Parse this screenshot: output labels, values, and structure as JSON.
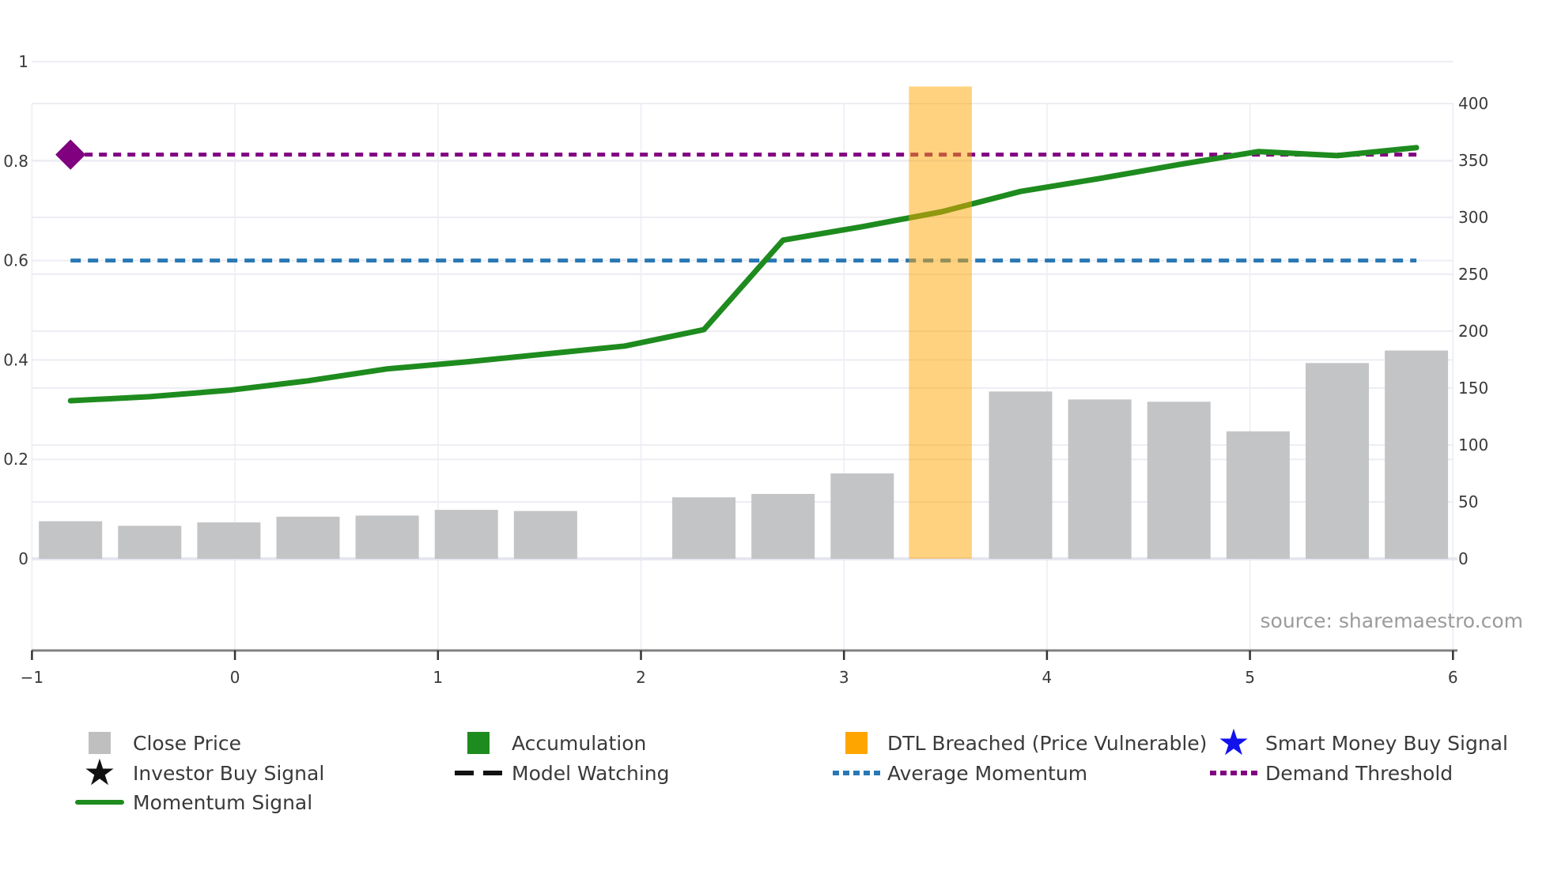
{
  "source_note": "source: sharemaestro.com",
  "colors": {
    "bar_gray": "#c3c4c6",
    "legend_gray": "#bfbfbf",
    "green": "#1e8b1e",
    "orange": "#ffa500",
    "orange_band_fill_alpha": 0.5,
    "blue": "#2878b4",
    "purple": "#800080",
    "blue_star": "#1212ee",
    "black": "#111111",
    "axis_spine": "#808080",
    "tick_text": "#3a3a3a",
    "grid_light": "#ededf3",
    "grid_vertical": "#eff1f7",
    "baseline_band": "#e6e7f0",
    "source_text": "#9b9b9b"
  },
  "chart_data": {
    "type": "combo",
    "title": "",
    "xlabel": "",
    "ylabel_left": "",
    "ylabel_right": "",
    "grid": true,
    "x_tick_labels": [
      "−1",
      "0",
      "1",
      "2",
      "3",
      "4",
      "5",
      "6"
    ],
    "x_tick_values": [
      -1,
      0,
      1,
      2,
      3,
      4,
      5,
      6
    ],
    "left_axis_ticks": [
      "0",
      "0.2",
      "0.4",
      "0.6",
      "0.8",
      "1"
    ],
    "left_axis_tick_values": [
      0,
      0.2,
      0.4,
      0.6,
      0.8,
      1.0
    ],
    "right_axis_ticks": [
      "0",
      "50",
      "100",
      "150",
      "200",
      "250",
      "300",
      "350",
      "400"
    ],
    "right_axis_tick_values": [
      0,
      50,
      100,
      150,
      200,
      250,
      300,
      350,
      400
    ],
    "x": [
      -0.81,
      -0.42,
      -0.03,
      0.36,
      0.75,
      1.14,
      1.53,
      1.92,
      2.31,
      2.7,
      3.09,
      3.48,
      3.87,
      4.26,
      4.65,
      5.04,
      5.43,
      5.82
    ],
    "series": [
      {
        "name": "Close Price",
        "type": "bar",
        "axis": "right",
        "values": [
          33,
          29,
          32,
          37,
          38,
          43,
          42,
          null,
          54,
          57,
          75,
          null,
          147,
          140,
          138,
          112,
          172,
          183
        ]
      },
      {
        "name": "Momentum Signal",
        "type": "line",
        "axis": "left",
        "values": [
          0.318,
          0.326,
          0.339,
          0.358,
          0.382,
          0.396,
          0.412,
          0.428,
          0.461,
          0.641,
          0.668,
          0.698,
          0.739,
          0.765,
          0.793,
          0.819,
          0.811,
          0.827
        ]
      },
      {
        "name": "Average Momentum",
        "type": "hline",
        "axis": "left",
        "value": 0.6,
        "style": "dotted"
      },
      {
        "name": "Demand Threshold",
        "type": "hline",
        "axis": "left",
        "value": 0.813,
        "style": "dotted",
        "start_marker": "diamond"
      },
      {
        "name": "DTL Breached (Price Vulnerable)",
        "type": "vspan",
        "x_range": [
          3.32,
          3.63
        ],
        "top_left_axis": 0.95
      }
    ],
    "legend_position": "bottom",
    "legend": [
      {
        "label": "Close Price",
        "marker": "square",
        "color_key": "legend_gray",
        "row": 0,
        "col": 0
      },
      {
        "label": "Accumulation",
        "marker": "square",
        "color_key": "green",
        "row": 0,
        "col": 1
      },
      {
        "label": "DTL Breached (Price Vulnerable)",
        "marker": "square",
        "color_key": "orange",
        "row": 0,
        "col": 2
      },
      {
        "label": "Smart Money Buy Signal",
        "marker": "star",
        "color_key": "blue_star",
        "row": 0,
        "col": 3
      },
      {
        "label": "Investor Buy Signal",
        "marker": "star",
        "color_key": "black",
        "row": 1,
        "col": 0
      },
      {
        "label": "Model Watching",
        "marker": "dashes",
        "color_key": "black",
        "row": 1,
        "col": 1
      },
      {
        "label": "Average Momentum",
        "marker": "dots",
        "color_key": "blue",
        "row": 1,
        "col": 2
      },
      {
        "label": "Demand Threshold",
        "marker": "dots",
        "color_key": "purple",
        "row": 1,
        "col": 3
      },
      {
        "label": "Momentum Signal",
        "marker": "line",
        "color_key": "green",
        "row": 2,
        "col": 0
      }
    ]
  }
}
